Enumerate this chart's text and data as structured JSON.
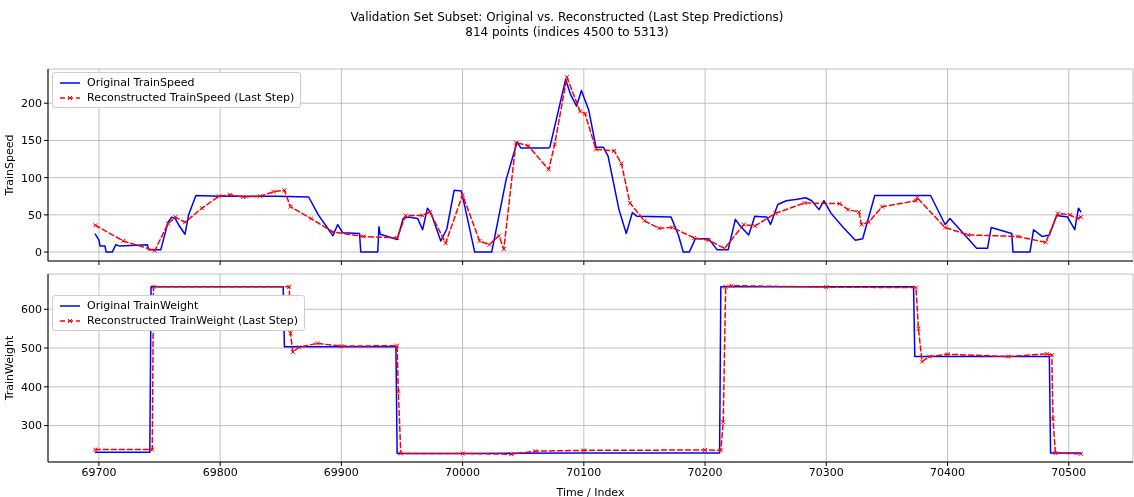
{
  "chart_data": [
    {
      "type": "line",
      "title": "Validation Set Subset: Original vs. Reconstructed (Last Step Predictions)",
      "subtitle": "814 points (indices 4500 to 5313)",
      "ylabel": "TrainSpeed",
      "xlim": [
        69658,
        70553
      ],
      "xticks": [
        69700,
        69800,
        69900,
        70000,
        70100,
        70200,
        70300,
        70400,
        70500
      ],
      "ylim": [
        -12,
        246
      ],
      "yticks": [
        0,
        50,
        100,
        150,
        200
      ],
      "grid": true,
      "legend": "top left",
      "tick_labels": "y",
      "series": [
        {
          "name": "Original TrainSpeed",
          "color": "#0000ff",
          "line_style": "solid",
          "x": [
            69697,
            69700,
            69701,
            69705,
            69706,
            69711,
            69714,
            69717,
            69740,
            69741,
            69751,
            69757,
            69760,
            69763,
            69766,
            69771,
            69774,
            69780,
            69799,
            69819,
            69847,
            69873,
            69881,
            69893,
            69897,
            69901,
            69915,
            69916,
            69930,
            69931,
            69932,
            69946,
            69951,
            69955,
            69963,
            69967,
            69971,
            69974,
            69982,
            69987,
            69993,
            69999,
            70004,
            70010,
            70024,
            70036,
            70045,
            70048,
            70071,
            70072,
            70085,
            70089,
            70094,
            70098,
            70104,
            70110,
            70116,
            70120,
            70129,
            70135,
            70140,
            70144,
            70172,
            70178,
            70182,
            70187,
            70192,
            70203,
            70210,
            70219,
            70225,
            70229,
            70236,
            70241,
            70251,
            70254,
            70260,
            70267,
            70276,
            70283,
            70288,
            70294,
            70298,
            70304,
            70314,
            70324,
            70330,
            70340,
            70386,
            70398,
            70402,
            70417,
            70424,
            70433,
            70436,
            70453,
            70454,
            70468,
            70471,
            70478,
            70484,
            70490,
            70499,
            70505,
            70508,
            70510
          ],
          "values": [
            24,
            16,
            8,
            8,
            0,
            0,
            10,
            8,
            10,
            3,
            3,
            40,
            47,
            45,
            36,
            24,
            50,
            76,
            75,
            75,
            75,
            74,
            50,
            22,
            37,
            26,
            25,
            0,
            0,
            34,
            24,
            17,
            45,
            47,
            45,
            30,
            59,
            52,
            15,
            31,
            83,
            82,
            45,
            0,
            0,
            98,
            148,
            140,
            140,
            141,
            232,
            212,
            196,
            217,
            191,
            141,
            141,
            129,
            57,
            25,
            53,
            48,
            47,
            23,
            0,
            0,
            18,
            18,
            3,
            3,
            44,
            35,
            23,
            48,
            47,
            37,
            64,
            69,
            71,
            73,
            69,
            57,
            69,
            52,
            33,
            16,
            18,
            76,
            76,
            37,
            45,
            18,
            5,
            5,
            33,
            25,
            0,
            0,
            30,
            21,
            23,
            49,
            47,
            30,
            59,
            54
          ]
        },
        {
          "name": "Reconstructed TrainSpeed (Last Step)",
          "color": "#ff0000",
          "marker": "cross",
          "line_style": "dashed",
          "x": [
            69697,
            69720,
            69746,
            69757,
            69763,
            69771,
            69785,
            69799,
            69808,
            69819,
            69833,
            69844,
            69853,
            69858,
            69875,
            69893,
            69918,
            69946,
            69953,
            69967,
            69973,
            69986,
            70000,
            70014,
            70022,
            70030,
            70034,
            70044,
            70054,
            70071,
            70076,
            70086,
            70097,
            70101,
            70110,
            70125,
            70131,
            70138,
            70150,
            70162,
            70173,
            70191,
            70203,
            70216,
            70232,
            70241,
            70258,
            70282,
            70311,
            70318,
            70327,
            70329,
            70335,
            70346,
            70374,
            70375,
            70398,
            70417,
            70458,
            70481,
            70491,
            70501,
            70507,
            70510
          ],
          "values": [
            36,
            15,
            2,
            38,
            47,
            40,
            59,
            75,
            77,
            74,
            75,
            81,
            83,
            61,
            45,
            27,
            21,
            19,
            49,
            49,
            54,
            12,
            77,
            15,
            10,
            22,
            4,
            147,
            143,
            111,
            145,
            235,
            189,
            186,
            138,
            136,
            119,
            66,
            42,
            32,
            33,
            19,
            16,
            5,
            37,
            35,
            52,
            66,
            65,
            57,
            54,
            37,
            40,
            61,
            69,
            73,
            33,
            23,
            21,
            13,
            52,
            50,
            45,
            47
          ]
        }
      ]
    },
    {
      "type": "line",
      "xlabel": "Time / Index",
      "ylabel": "TrainWeight",
      "xlim": [
        69658,
        70553
      ],
      "xticks": [
        69700,
        69800,
        69900,
        70000,
        70100,
        70200,
        70300,
        70400,
        70500
      ],
      "ylim": [
        206,
        691
      ],
      "yticks": [
        300,
        400,
        500,
        600
      ],
      "grid": true,
      "legend": "top left",
      "series": [
        {
          "name": "Original TrainWeight",
          "color": "#0000ff",
          "line_style": "solid",
          "x": [
            69697,
            69742,
            69743,
            69852,
            69853,
            69945,
            69946,
            70000,
            70100,
            70212,
            70213,
            70300,
            70372,
            70373,
            70450,
            70484,
            70485,
            70510
          ],
          "values": [
            231,
            231,
            658,
            658,
            503,
            503,
            228,
            228,
            229,
            229,
            658,
            658,
            658,
            478,
            478,
            478,
            229,
            229
          ]
        },
        {
          "name": "Reconstructed TrainWeight (Last Step)",
          "color": "#ff0000",
          "marker": "cross",
          "line_style": "dashed",
          "x": [
            69697,
            69744,
            69745,
            69857,
            69858,
            69860,
            69865,
            69880,
            69900,
            69946,
            69947,
            69949,
            70000,
            70040,
            70060,
            70100,
            70200,
            70213,
            70215,
            70217,
            70222,
            70300,
            70374,
            70376,
            70379,
            70385,
            70400,
            70450,
            70482,
            70486,
            70487,
            70489,
            70510
          ],
          "values": [
            238,
            238,
            658,
            658,
            538,
            490,
            502,
            512,
            505,
            506,
            387,
            228,
            228,
            226,
            234,
            236,
            237,
            236,
            309,
            658,
            661,
            657,
            656,
            550,
            465,
            478,
            484,
            478,
            485,
            482,
            318,
            229,
            227
          ]
        }
      ]
    }
  ]
}
